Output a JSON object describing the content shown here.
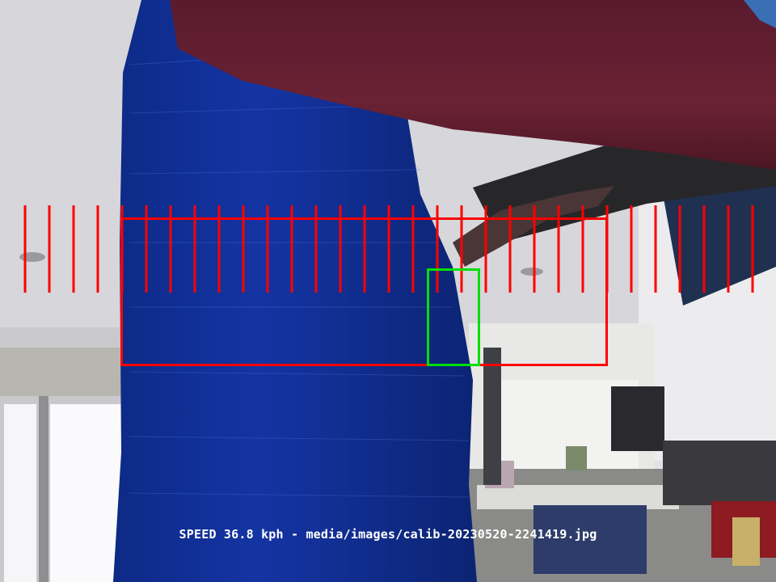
{
  "caption": {
    "speed_label": "SPEED",
    "speed_value": "36.8",
    "speed_unit": "kph",
    "separator": "-",
    "image_path": "media/images/calib-20230520-2241419.jpg",
    "text": "SPEED 36.8 kph - media/images/calib-20230520-2241419.jpg",
    "color": "#ffffff"
  },
  "overlay": {
    "ruler_color": "#ff0000",
    "detection_area_color": "#ff0000",
    "motion_box_color": "#00e000",
    "ruler_tick_count": 31
  }
}
